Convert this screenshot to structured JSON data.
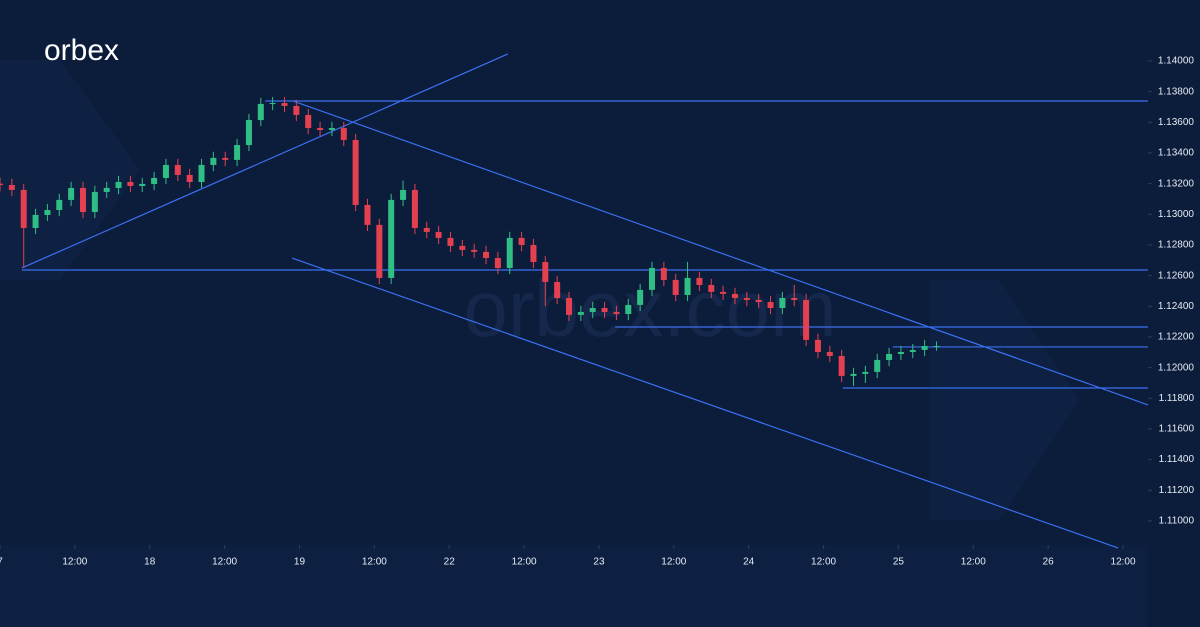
{
  "brand": "orbex",
  "watermark": "orbex.com",
  "chart_data": {
    "type": "candlestick",
    "x": [
      0,
      1.9,
      3.8,
      5.7,
      7.6,
      9.5,
      11.4,
      13.3,
      15.2,
      17.1,
      19,
      20.9,
      22.8,
      24.7,
      26.6,
      28.5,
      30.4,
      32.3,
      34.2,
      36.1,
      38,
      39.9,
      41.8,
      43.7,
      45.6,
      47.5,
      49.4,
      51.3,
      53.2,
      55.1,
      57,
      58.9,
      60.8,
      62.7,
      64.6,
      66.5,
      68.4,
      70.3,
      72.2,
      74.1,
      76,
      77.9,
      79.8,
      81.7,
      83.6,
      85.5,
      87.4,
      89.3,
      91.2,
      93.1,
      95,
      96.9,
      98.8,
      100.7,
      102.6,
      104.5,
      106.4,
      108.3,
      110.2,
      112.1,
      114,
      115.9,
      117.8,
      119.7,
      121.6,
      123.5,
      125.4,
      127.3,
      129.2,
      131.1,
      133,
      134.9,
      136.8,
      138.7,
      140.6,
      142.5,
      144.4,
      146.3,
      148.2,
      150.1
    ],
    "open": [
      1.132,
      1.13191,
      1.13159,
      1.12911,
      1.12996,
      1.13028,
      1.13094,
      1.13172,
      1.13015,
      1.13146,
      1.13172,
      1.13211,
      1.13185,
      1.13198,
      1.13237,
      1.13322,
      1.13257,
      1.13211,
      1.13322,
      1.13368,
      1.13355,
      1.13452,
      1.13615,
      1.1372,
      1.13726,
      1.13707,
      1.13648,
      1.13563,
      1.1355,
      1.13563,
      1.13485,
      1.13061,
      1.12931,
      1.12585,
      1.13094,
      1.13159,
      1.12911,
      1.12885,
      1.12846,
      1.12794,
      1.12768,
      1.12755,
      1.12715,
      1.1265,
      1.12846,
      1.128,
      1.12689,
      1.12559,
      1.12454,
      1.12344,
      1.12363,
      1.12389,
      1.12363,
      1.1235,
      1.12409,
      1.12507,
      1.1265,
      1.12572,
      1.12474,
      1.12585,
      1.12539,
      1.12494,
      1.12481,
      1.12454,
      1.12441,
      1.12428,
      1.12389,
      1.12454,
      1.12441,
      1.12181,
      1.12102,
      1.12076,
      1.11946,
      1.11959,
      1.11972,
      1.1205,
      1.12089,
      1.12102,
      1.12115,
      1.12141
    ],
    "high": [
      1.1324,
      1.13231,
      1.13199,
      1.13036,
      1.13068,
      1.13134,
      1.13212,
      1.13212,
      1.13186,
      1.13212,
      1.13251,
      1.13251,
      1.13238,
      1.13277,
      1.13362,
      1.13362,
      1.13297,
      1.13362,
      1.13408,
      1.13408,
      1.13492,
      1.13655,
      1.1376,
      1.13766,
      1.13766,
      1.13747,
      1.13688,
      1.13603,
      1.13603,
      1.13603,
      1.13525,
      1.13101,
      1.12971,
      1.13134,
      1.1322,
      1.13199,
      1.12951,
      1.12925,
      1.12886,
      1.12834,
      1.12808,
      1.12795,
      1.12755,
      1.12886,
      1.12886,
      1.1284,
      1.12729,
      1.12599,
      1.12494,
      1.12403,
      1.12429,
      1.12429,
      1.12403,
      1.12449,
      1.12547,
      1.1269,
      1.1269,
      1.12612,
      1.1269,
      1.12625,
      1.12579,
      1.12534,
      1.12521,
      1.12494,
      1.12481,
      1.12468,
      1.12494,
      1.1254,
      1.12481,
      1.12221,
      1.12142,
      1.12116,
      1.11999,
      1.12012,
      1.1209,
      1.12129,
      1.12142,
      1.12155,
      1.12181,
      1.12171
    ],
    "low": [
      1.1315,
      1.13119,
      1.1265,
      1.12871,
      1.12956,
      1.12988,
      1.13054,
      1.12975,
      1.12975,
      1.13106,
      1.13132,
      1.13145,
      1.13145,
      1.13158,
      1.13197,
      1.13217,
      1.13171,
      1.13171,
      1.13282,
      1.13315,
      1.13315,
      1.13412,
      1.13575,
      1.1368,
      1.13667,
      1.13608,
      1.13523,
      1.1351,
      1.1351,
      1.13445,
      1.13021,
      1.12891,
      1.12545,
      1.12545,
      1.13054,
      1.12871,
      1.12845,
      1.12806,
      1.12754,
      1.12728,
      1.12715,
      1.12675,
      1.1261,
      1.1261,
      1.1276,
      1.12649,
      1.124,
      1.12414,
      1.12304,
      1.12304,
      1.12323,
      1.12323,
      1.1231,
      1.1231,
      1.12369,
      1.12467,
      1.12532,
      1.12434,
      1.12434,
      1.12499,
      1.12454,
      1.12441,
      1.12414,
      1.12401,
      1.12388,
      1.12349,
      1.12349,
      1.12401,
      1.12141,
      1.12062,
      1.12036,
      1.11906,
      1.1188,
      1.119,
      1.11932,
      1.1201,
      1.12049,
      1.12062,
      1.12075,
      1.12111
    ],
    "close": [
      1.13191,
      1.13159,
      1.12911,
      1.12996,
      1.13028,
      1.13094,
      1.13172,
      1.13015,
      1.13146,
      1.13172,
      1.13211,
      1.13185,
      1.13198,
      1.13237,
      1.13322,
      1.13257,
      1.13211,
      1.13322,
      1.13368,
      1.13355,
      1.13452,
      1.13615,
      1.1372,
      1.13726,
      1.13707,
      1.13648,
      1.13563,
      1.1355,
      1.13563,
      1.13485,
      1.13061,
      1.12931,
      1.12585,
      1.13094,
      1.13159,
      1.12911,
      1.12885,
      1.12846,
      1.12794,
      1.12768,
      1.12755,
      1.12715,
      1.1265,
      1.12846,
      1.128,
      1.12689,
      1.12559,
      1.12454,
      1.12344,
      1.12363,
      1.12389,
      1.12363,
      1.1235,
      1.12409,
      1.12507,
      1.1265,
      1.12572,
      1.12474,
      1.12585,
      1.12539,
      1.12494,
      1.12481,
      1.12454,
      1.12441,
      1.12428,
      1.12389,
      1.12454,
      1.12441,
      1.12181,
      1.12102,
      1.12076,
      1.11946,
      1.11959,
      1.11972,
      1.1205,
      1.12089,
      1.12102,
      1.12115,
      1.12141,
      1.12141
    ],
    "up_color": "#2fbf84",
    "down_color": "#e5404f",
    "line_color": "#3a6ff0",
    "trendlines": [
      [
        3.5,
        1.1265,
        81.4,
        1.14046
      ],
      [
        42.5,
        1.13739,
        184,
        1.13739
      ],
      [
        47,
        1.13739,
        184,
        1.11757
      ],
      [
        3.5,
        1.12637,
        184,
        1.12637
      ],
      [
        46.8,
        1.12715,
        179.2,
        1.10824
      ],
      [
        98.6,
        1.12265,
        184,
        1.12265
      ],
      [
        143.1,
        1.12135,
        184,
        1.12135
      ],
      [
        135.1,
        1.11867,
        184,
        1.11867
      ]
    ],
    "xlim": [
      0,
      184
    ],
    "ylim": [
      1.10843,
      1.14398
    ],
    "xticks": [
      {
        "value": 0,
        "label": "7"
      },
      {
        "value": 12,
        "label": "12:00"
      },
      {
        "value": 24,
        "label": "18"
      },
      {
        "value": 36,
        "label": "12:00"
      },
      {
        "value": 48,
        "label": "19"
      },
      {
        "value": 60,
        "label": "12:00"
      },
      {
        "value": 72,
        "label": "22"
      },
      {
        "value": 84,
        "label": "12:00"
      },
      {
        "value": 96,
        "label": "23"
      },
      {
        "value": 108,
        "label": "12:00"
      },
      {
        "value": 120,
        "label": "24"
      },
      {
        "value": 132,
        "label": "12:00"
      },
      {
        "value": 144,
        "label": "25"
      },
      {
        "value": 156,
        "label": "12:00"
      },
      {
        "value": 168,
        "label": "26"
      },
      {
        "value": 180,
        "label": "12:00"
      }
    ],
    "yticks": [
      {
        "value": 1.11,
        "label": "1.11000"
      },
      {
        "value": 1.112,
        "label": "1.11200"
      },
      {
        "value": 1.114,
        "label": "1.11400"
      },
      {
        "value": 1.116,
        "label": "1.11600"
      },
      {
        "value": 1.118,
        "label": "1.11800"
      },
      {
        "value": 1.12,
        "label": "1.12000"
      },
      {
        "value": 1.122,
        "label": "1.12200"
      },
      {
        "value": 1.124,
        "label": "1.12400"
      },
      {
        "value": 1.126,
        "label": "1.12600"
      },
      {
        "value": 1.128,
        "label": "1.12800"
      },
      {
        "value": 1.13,
        "label": "1.13000"
      },
      {
        "value": 1.132,
        "label": "1.13200"
      },
      {
        "value": 1.134,
        "label": "1.13400"
      },
      {
        "value": 1.136,
        "label": "1.13600"
      },
      {
        "value": 1.138,
        "label": "1.13800"
      },
      {
        "value": 1.14,
        "label": "1.14000"
      }
    ]
  }
}
